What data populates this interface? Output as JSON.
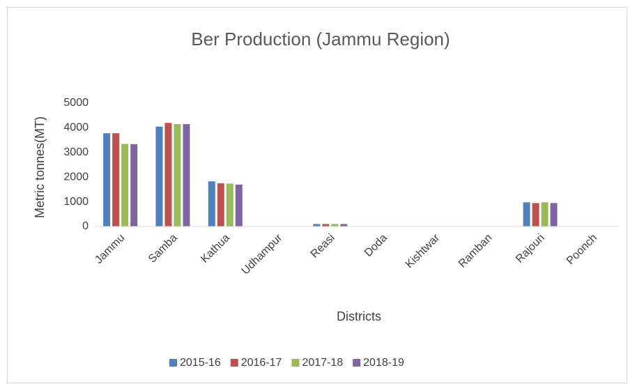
{
  "chart_data": {
    "type": "bar",
    "title": "Ber Production (Jammu Region)",
    "x_label": "Districts",
    "y_label": "Metric tonnes(MT)",
    "categories": [
      "Jammu",
      "Samba",
      "Kathua",
      "Udhampur",
      "Reasi",
      "Doda",
      "Kishtwar",
      "Ramban",
      "Rajouri",
      "Poonch"
    ],
    "series": [
      {
        "name": "2015-16",
        "color": "#4f81bd",
        "values": [
          3780,
          4050,
          1830,
          0,
          100,
          0,
          0,
          0,
          980,
          0
        ]
      },
      {
        "name": "2016-17",
        "color": "#c0504d",
        "values": [
          3780,
          4200,
          1750,
          0,
          100,
          0,
          0,
          0,
          950,
          0
        ]
      },
      {
        "name": "2017-18",
        "color": "#9bbb59",
        "values": [
          3350,
          4150,
          1740,
          0,
          100,
          0,
          0,
          0,
          980,
          0
        ]
      },
      {
        "name": "2018-19",
        "color": "#8064a2",
        "values": [
          3340,
          4150,
          1700,
          0,
          100,
          0,
          0,
          0,
          950,
          0
        ]
      }
    ],
    "ylim": [
      0,
      5000
    ],
    "yticks": [
      0,
      1000,
      2000,
      3000,
      4000,
      5000
    ],
    "grid": false,
    "legend": "bottom"
  }
}
